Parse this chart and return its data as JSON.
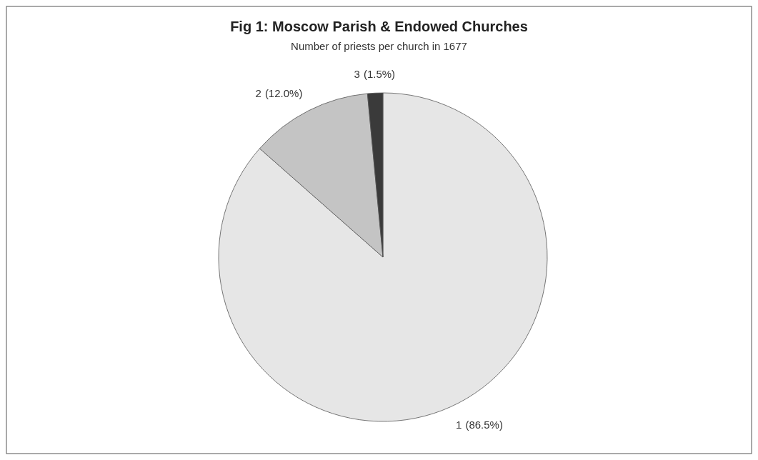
{
  "chart_data": {
    "type": "pie",
    "title": "Fig 1: Moscow Parish & Endowed Churches",
    "subtitle": "Number of priests per church in 1677",
    "categories": [
      "1",
      "2",
      "3"
    ],
    "values": [
      86.5,
      12.0,
      1.5
    ],
    "colors": [
      "#e6e6e6",
      "#c4c4c4",
      "#3a3a3a"
    ],
    "value_labels": [
      "(86.5%)",
      "(12.0%)",
      "(1.5%)"
    ],
    "legend": false
  }
}
